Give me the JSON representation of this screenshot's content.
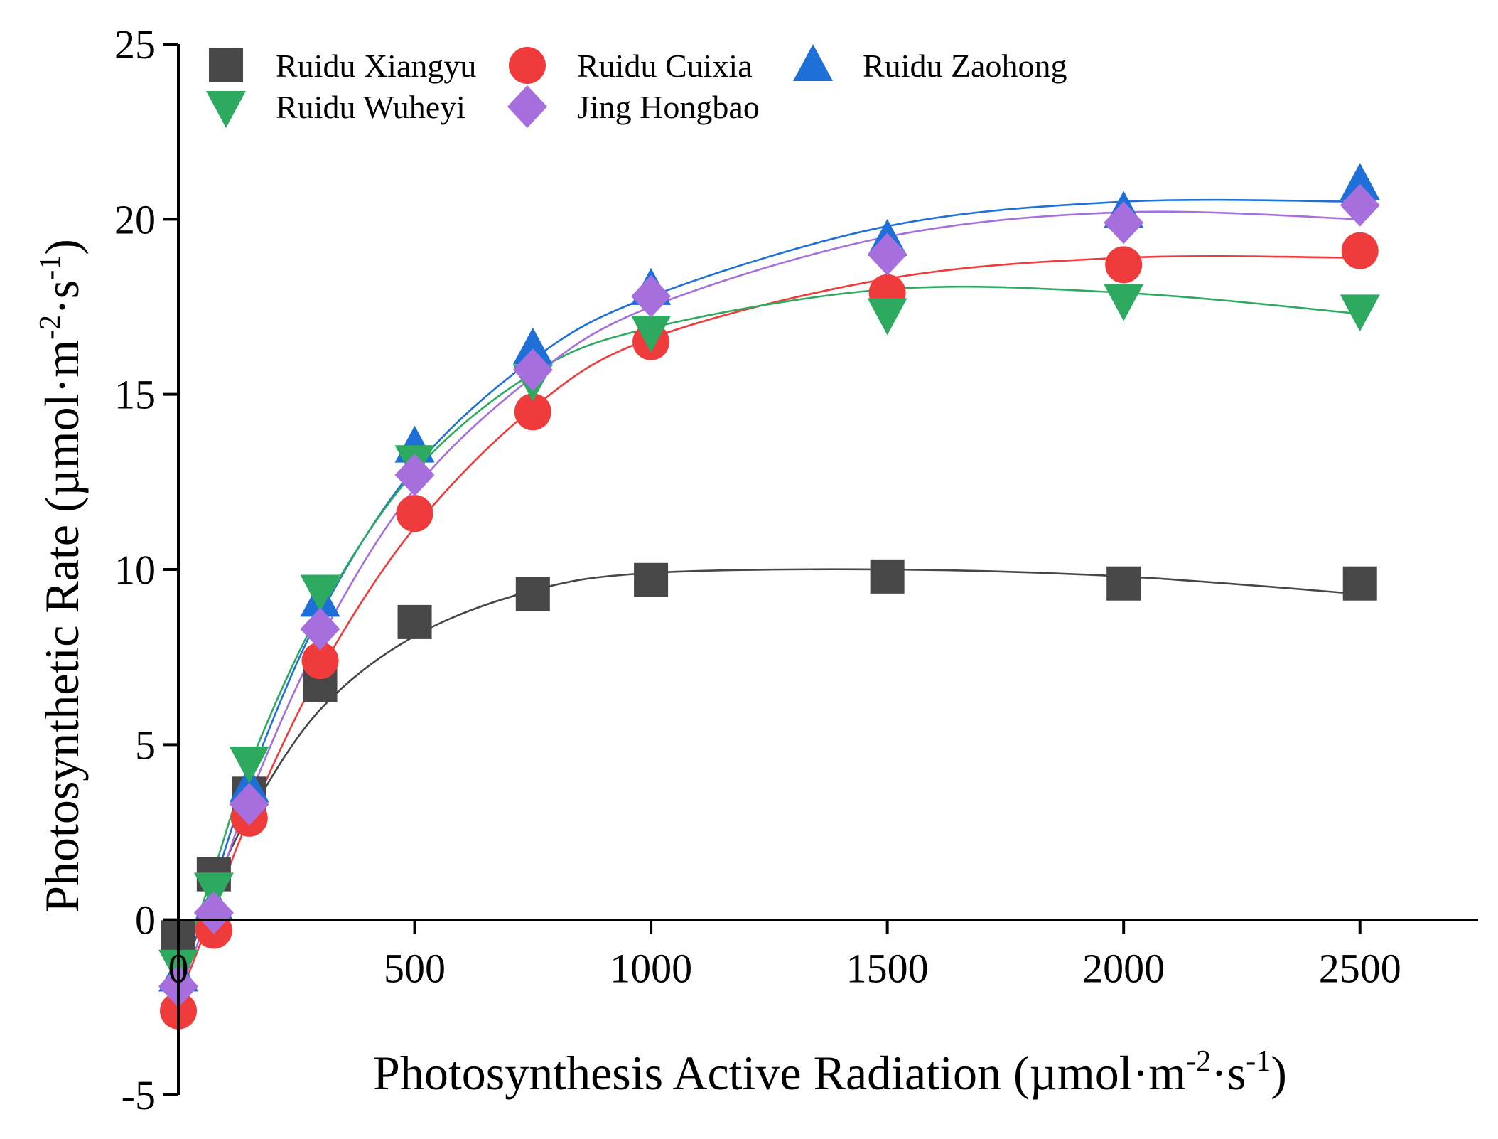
{
  "chart_data": {
    "type": "scatter",
    "title": "",
    "xlabel": "Photosynthesis Active Radiation (µmol·m⁻²·s⁻¹)",
    "ylabel": "Photosynthetic Rate (µmol·m⁻²·s⁻¹)",
    "xlabel_parts": {
      "main": "Photosynthesis Active Radiation (µmol·m",
      "sup1": "-2",
      "mid": "·s",
      "sup2": "-1",
      "end": ")"
    },
    "ylabel_parts": {
      "main": "Photosynthetic Rate (µmol·m",
      "sup1": "-2",
      "mid": "·s",
      "sup2": "-1",
      "end": ")"
    },
    "xlim": [
      0,
      2750
    ],
    "ylim": [
      -5,
      25
    ],
    "xticks": [
      0,
      500,
      1000,
      1500,
      2000,
      2500
    ],
    "xtick_labels": [
      "0",
      "500",
      "1000",
      "1500",
      "2000",
      "2500"
    ],
    "yticks": [
      -5,
      0,
      5,
      10,
      15,
      20,
      25
    ],
    "ytick_labels": [
      "-5",
      "0",
      "5",
      "10",
      "15",
      "20",
      "25"
    ],
    "legend_position": "top-left",
    "fitted_curves": true,
    "x": [
      0,
      75,
      150,
      300,
      500,
      750,
      1000,
      1500,
      2000,
      2500
    ],
    "series": [
      {
        "name": "Ruidu Xiangyu",
        "marker": "square",
        "color": "#474747",
        "values": [
          -0.5,
          1.3,
          3.6,
          6.7,
          8.5,
          9.3,
          9.7,
          9.8,
          9.6,
          9.6
        ],
        "fit": [
          -1.5,
          0.9,
          3.0,
          6.0,
          8.1,
          9.4,
          9.9,
          10.0,
          9.8,
          9.3
        ]
      },
      {
        "name": "Ruidu Cuixia",
        "marker": "circle",
        "color": "#ef3b3b",
        "values": [
          -2.6,
          -0.3,
          2.9,
          7.4,
          11.6,
          14.5,
          16.5,
          17.9,
          18.7,
          19.1
        ],
        "fit": [
          -2.3,
          0.3,
          2.9,
          7.1,
          11.2,
          14.6,
          16.6,
          18.3,
          18.9,
          18.9
        ]
      },
      {
        "name": "Ruidu Zaohong",
        "marker": "triangle-up",
        "color": "#1f6fd9",
        "values": [
          -1.6,
          0.4,
          3.8,
          9.1,
          13.5,
          16.3,
          18.0,
          19.4,
          20.2,
          21.0
        ],
        "fit": [
          -2.0,
          1.0,
          4.0,
          8.7,
          12.9,
          16.0,
          17.8,
          19.8,
          20.5,
          20.5
        ]
      },
      {
        "name": "Ruidu Wuheyi",
        "marker": "triangle-down",
        "color": "#2daa5f",
        "values": [
          -1.3,
          0.9,
          4.5,
          9.4,
          13.1,
          15.4,
          16.8,
          17.3,
          17.7,
          17.4
        ],
        "fit": [
          -1.6,
          1.4,
          4.4,
          8.8,
          12.8,
          15.6,
          16.9,
          18.0,
          17.9,
          17.3
        ]
      },
      {
        "name": "Jing Hongbao",
        "marker": "diamond",
        "color": "#a66fdd",
        "values": [
          -1.9,
          0.2,
          3.3,
          8.3,
          12.7,
          15.7,
          17.8,
          19.0,
          19.9,
          20.4
        ],
        "fit": [
          -2.2,
          0.6,
          3.5,
          8.0,
          12.3,
          15.5,
          17.5,
          19.5,
          20.2,
          20.0
        ]
      }
    ],
    "legend_layout": [
      [
        "Ruidu Xiangyu",
        "Ruidu Cuixia",
        "Ruidu Zaohong"
      ],
      [
        "Ruidu Wuheyi",
        "Jing Hongbao"
      ]
    ]
  }
}
